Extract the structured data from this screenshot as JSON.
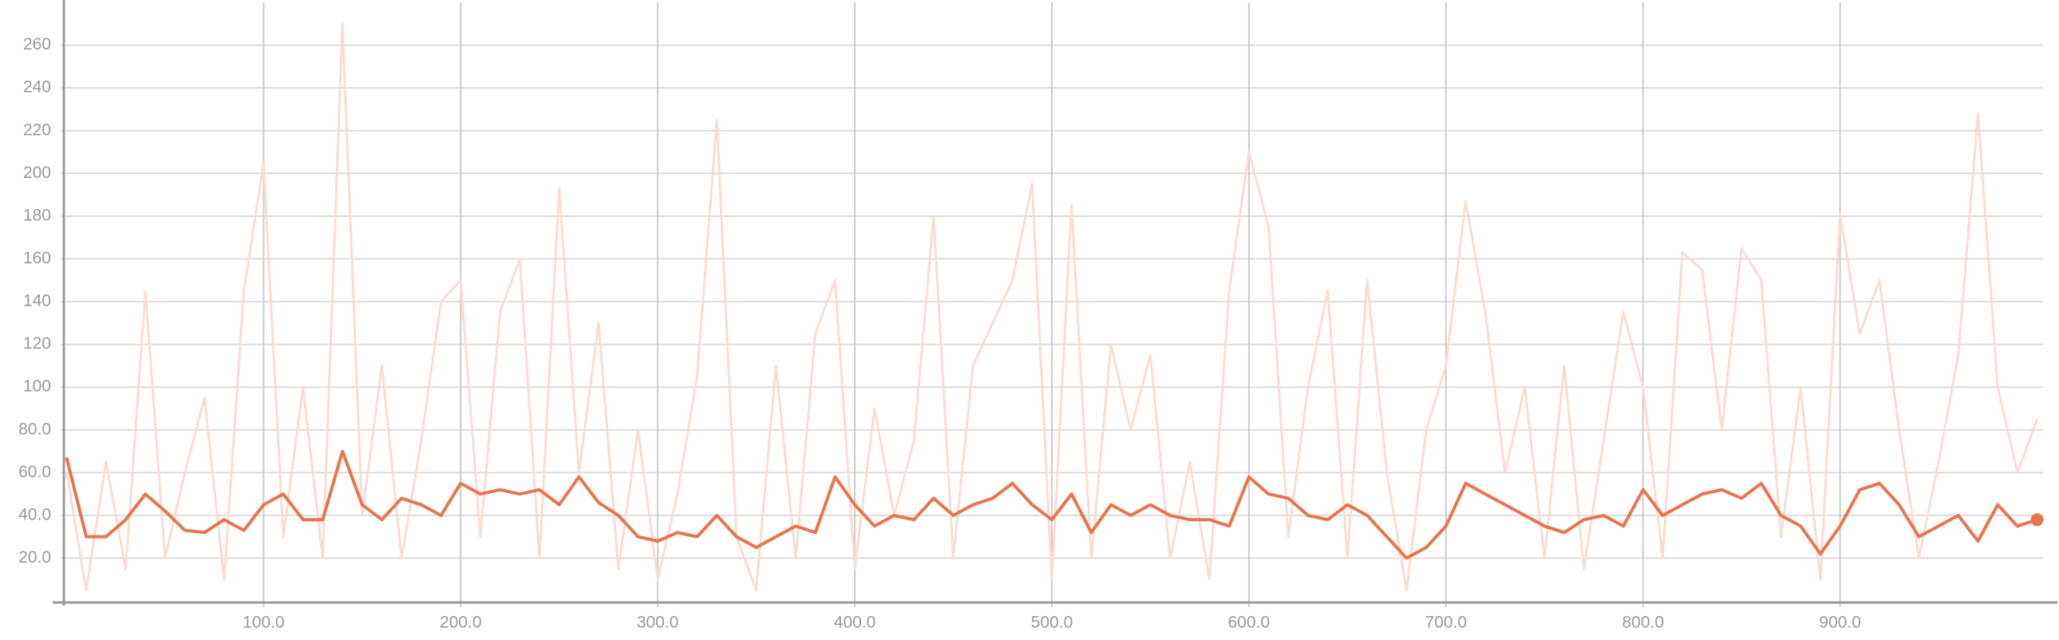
{
  "chart_data": {
    "type": "line",
    "x": [
      0,
      10,
      20,
      30,
      40,
      50,
      60,
      70,
      80,
      90,
      100,
      110,
      120,
      130,
      140,
      150,
      160,
      170,
      180,
      190,
      200,
      210,
      220,
      230,
      240,
      250,
      260,
      270,
      280,
      290,
      300,
      310,
      320,
      330,
      340,
      350,
      360,
      370,
      380,
      390,
      400,
      410,
      420,
      430,
      440,
      450,
      460,
      470,
      480,
      490,
      500,
      510,
      520,
      530,
      540,
      550,
      560,
      570,
      580,
      590,
      600,
      610,
      620,
      630,
      640,
      650,
      660,
      670,
      680,
      690,
      700,
      710,
      720,
      730,
      740,
      750,
      760,
      770,
      780,
      790,
      800,
      810,
      820,
      830,
      840,
      850,
      860,
      870,
      880,
      890,
      900,
      910,
      920,
      930,
      940,
      950,
      960,
      970,
      980,
      990,
      1000
    ],
    "series": [
      {
        "color": "#fbdcd0",
        "values": [
          60,
          5,
          65,
          15,
          145,
          20,
          60,
          95,
          10,
          145,
          205,
          30,
          100,
          20,
          270,
          40,
          110,
          20,
          75,
          140,
          150,
          30,
          135,
          160,
          20,
          193,
          60,
          130,
          15,
          80,
          10,
          50,
          105,
          225,
          30,
          5,
          110,
          20,
          125,
          150,
          15,
          90,
          40,
          75,
          180,
          20,
          110,
          130,
          150,
          195,
          10,
          185,
          20,
          120,
          80,
          115,
          20,
          65,
          10,
          145,
          210,
          175,
          30,
          100,
          145,
          20,
          150,
          60,
          5,
          80,
          110,
          187,
          135,
          60,
          100,
          20,
          110,
          15,
          75,
          135,
          100,
          20,
          163,
          155,
          80,
          165,
          150,
          30,
          100,
          10,
          181,
          125,
          150,
          80,
          20,
          65,
          115,
          228,
          100,
          60,
          85
        ]
      },
      {
        "color": "#e8754b",
        "values": [
          67,
          30,
          30,
          38,
          50,
          42,
          33,
          32,
          38,
          33,
          45,
          50,
          38,
          38,
          70,
          45,
          38,
          48,
          45,
          40,
          55,
          50,
          52,
          50,
          52,
          45,
          58,
          46,
          40,
          30,
          28,
          32,
          30,
          40,
          30,
          25,
          30,
          35,
          32,
          58,
          45,
          35,
          40,
          38,
          48,
          40,
          45,
          48,
          55,
          45,
          38,
          50,
          32,
          45,
          40,
          45,
          40,
          38,
          38,
          35,
          58,
          50,
          48,
          40,
          38,
          45,
          40,
          30,
          20,
          25,
          35,
          55,
          50,
          45,
          40,
          35,
          32,
          38,
          40,
          35,
          52,
          40,
          45,
          50,
          52,
          48,
          55,
          40,
          35,
          22,
          35,
          52,
          55,
          45,
          30,
          35,
          40,
          28,
          45,
          35,
          38
        ]
      }
    ],
    "xlim": [
      -3,
      1003
    ],
    "ylim": [
      0,
      280
    ],
    "xticks": [
      {
        "value": 100,
        "label": "100.0"
      },
      {
        "value": 200,
        "label": "200.0"
      },
      {
        "value": 300,
        "label": "300.0"
      },
      {
        "value": 400,
        "label": "400.0"
      },
      {
        "value": 500,
        "label": "500.0"
      },
      {
        "value": 600,
        "label": "600.0"
      },
      {
        "value": 700,
        "label": "700.0"
      },
      {
        "value": 800,
        "label": "800.0"
      },
      {
        "value": 900,
        "label": "900.0"
      }
    ],
    "yticks": [
      {
        "value": 20,
        "label": "20.0"
      },
      {
        "value": 40,
        "label": "40.0"
      },
      {
        "value": 60,
        "label": "60.0"
      },
      {
        "value": 80,
        "label": "80.0"
      },
      100,
      120,
      140,
      160,
      180,
      200,
      220,
      240,
      260
    ],
    "grid": true
  }
}
